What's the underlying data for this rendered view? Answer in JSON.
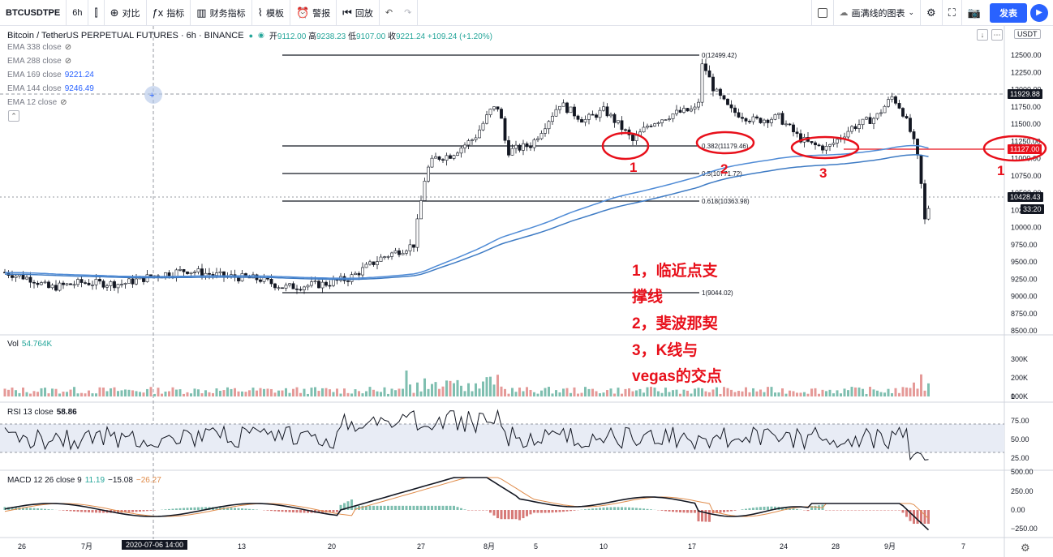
{
  "toolbar": {
    "symbol": "BTCUSDTPE",
    "interval": "6h",
    "items": [
      {
        "icon": "candles-icon",
        "glyph": "⫿",
        "label": ""
      },
      {
        "icon": "compare-icon",
        "glyph": "⊕",
        "label": "对比"
      },
      {
        "icon": "indicator-icon",
        "glyph": "ƒx",
        "label": "指标"
      },
      {
        "icon": "financials-icon",
        "glyph": "▥",
        "label": "财务指标"
      },
      {
        "icon": "template-icon",
        "glyph": "⌇",
        "label": "模板"
      },
      {
        "icon": "alert-icon",
        "glyph": "⏰",
        "label": "警报"
      },
      {
        "icon": "replay-icon",
        "glyph": "⏮",
        "label": "回放"
      }
    ],
    "undo_glyph": "↶",
    "redo_glyph": "↷",
    "layout_label": "画满线的图表",
    "publish_label": "发表"
  },
  "header": {
    "symbol_desc": "Bitcoin / TetherUS PERPETUAL FUTURES · 6h · BINANCE",
    "ohlc": {
      "o_label": "开",
      "o": "9112.00",
      "h_label": "高",
      "h": "9238.23",
      "l_label": "低",
      "l": "9107.00",
      "c_label": "收",
      "c": "9221.24",
      "chg": "+109.24 (+1.20%)"
    },
    "ema_legends": [
      {
        "label": "EMA 338 close",
        "value": "",
        "hidden": true
      },
      {
        "label": "EMA 288 close",
        "value": "",
        "hidden": true
      },
      {
        "label": "EMA 169 close",
        "value": "9221.24",
        "hidden": false
      },
      {
        "label": "EMA 144 close",
        "value": "9246.49",
        "hidden": false
      },
      {
        "label": "EMA 12 close",
        "value": "",
        "hidden": true
      }
    ],
    "currency_badge": "USDT"
  },
  "fib_labels": [
    {
      "level": "0",
      "price": "12499.42",
      "text": "0(12499.42)"
    },
    {
      "level": "0.382",
      "price": "11179.46",
      "text": "0.382(11179.46)"
    },
    {
      "level": "0.5",
      "price": "10771.72",
      "text": "0.5(10771.72)"
    },
    {
      "level": "0.618",
      "price": "10363.98",
      "text": "0.618(10363.98)"
    },
    {
      "level": "1",
      "price": "9044.02",
      "text": "1(9044.02)"
    }
  ],
  "price_axis_ticks": [
    "12500.00",
    "12250.00",
    "12000.00",
    "11750.00",
    "11500.00",
    "11250.00",
    "11000.00",
    "10750.00",
    "10500.00",
    "10250.00",
    "10000.00",
    "9750.00",
    "9500.00",
    "9250.00",
    "9000.00",
    "8750.00",
    "8500.00"
  ],
  "price_tags": {
    "crosshair": "11929.88",
    "support": "11127.00",
    "last": "10428.43",
    "countdown": "33:20"
  },
  "vol": {
    "label": "Vol",
    "value": "54.764K",
    "ticks": [
      "300K",
      "200K",
      "100K",
      "0"
    ]
  },
  "rsi": {
    "label": "RSI 13 close",
    "value": "58.86",
    "ticks": [
      "75.00",
      "50.00",
      "25.00"
    ]
  },
  "macd": {
    "label": "MACD 12 26 close 9",
    "v1": "11.19",
    "v2": "−15.08",
    "v3": "−26.27",
    "ticks": [
      "500.00",
      "250.00",
      "0.00",
      "−250.00"
    ]
  },
  "time_axis": [
    "26",
    "7月",
    "13",
    "20",
    "27",
    "8月",
    "5",
    "10",
    "17",
    "24",
    "28",
    "9月",
    "7"
  ],
  "crosshair_date": "2020-07-06   14:00",
  "annotations": {
    "lines": [
      "1，临近点支",
      "撑线",
      "2，斐波那契",
      "3，K线与",
      "vegas的交点"
    ],
    "circle_numbers": [
      "1",
      "2",
      "3",
      "1"
    ]
  },
  "colors": {
    "up": "#26a69a",
    "down": "#ef5350",
    "ema_fast": "#4f8bd6",
    "ema_slow": "#3e7bc4",
    "annotation": "#e8101b",
    "accent": "#2962ff"
  },
  "chart_data": {
    "type": "candlestick",
    "ylim": [
      8500,
      12750
    ],
    "key_prices": {
      "fib_0": 12499.42,
      "fib_0382": 11179.46,
      "fib_05": 10771.72,
      "fib_0618": 10363.98,
      "fib_1": 9044.02,
      "support": 11127.0,
      "last": 10428.43
    }
  }
}
